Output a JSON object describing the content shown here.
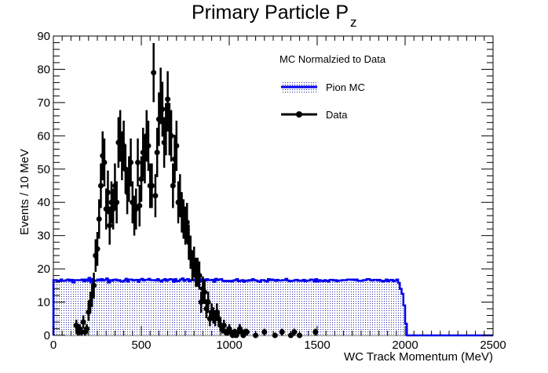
{
  "chart_data": {
    "type": "histogram+errorbars",
    "title": "Primary Particle P",
    "title_subscript": "z",
    "xlabel": "WC Track Momentum (MeV)",
    "ylabel": "Events / 10 MeV",
    "xlim": [
      0,
      2500
    ],
    "ylim": [
      0,
      90
    ],
    "x_ticks": [
      0,
      500,
      1000,
      1500,
      2000,
      2500
    ],
    "y_ticks": [
      0,
      10,
      20,
      30,
      40,
      50,
      60,
      70,
      80,
      90
    ],
    "grid": false,
    "legend": {
      "title": "MC Normalzied to Data",
      "placement": "top-right",
      "entries": [
        "Pion MC",
        "Data"
      ]
    },
    "colors": {
      "mc": "#0000ee",
      "data": "#000000",
      "fill": "#2222aa"
    },
    "series": [
      {
        "name": "Pion MC",
        "kind": "step-filled",
        "bin_width": 10,
        "x_start": 0,
        "values": [
          16.6,
          16.6,
          16.4,
          16.3,
          16.8,
          16.4,
          16.4,
          16.6,
          16.8,
          16.4,
          16.7,
          15.9,
          16.6,
          16.6,
          16.6,
          16.6,
          16.8,
          16.3,
          16.8,
          16.4,
          17.3,
          15.9,
          16.9,
          16.4,
          16.5,
          16.8,
          16.5,
          16.9,
          16.5,
          16.7,
          17.1,
          15.9,
          16.6,
          16.4,
          16.7,
          16.8,
          16.5,
          16.6,
          16.3,
          16.2,
          16.5,
          17.0,
          16.2,
          16.8,
          16.8,
          16.5,
          16.6,
          16.7,
          16.1,
          16.7,
          17.0,
          16.5,
          16.7,
          16.7,
          17.0,
          16.6,
          16.6,
          16.6,
          16.5,
          16.9,
          16.5,
          16.2,
          16.6,
          16.9,
          16.4,
          16.7,
          16.9,
          16.8,
          16.1,
          16.9,
          16.3,
          16.4,
          16.8,
          17.1,
          16.4,
          16.7,
          16.9,
          16.3,
          16.6,
          16.8,
          16.5,
          16.2,
          16.7,
          16.9,
          16.3,
          16.8,
          16.5,
          16.9,
          16.6,
          16.6,
          16.7,
          16.1,
          17.0,
          16.6,
          16.8,
          16.9,
          16.4,
          16.3,
          16.4,
          16.3,
          16.4,
          16.2,
          16.5,
          16.6,
          16.9,
          16.3,
          16.4,
          16.6,
          16.1,
          16.5,
          16.4,
          16.6,
          16.5,
          16.9,
          16.6,
          16.5,
          16.3,
          16.1,
          16.6,
          16.6,
          16.4,
          16.2,
          16.9,
          16.6,
          16.8,
          16.6,
          16.4,
          16.7,
          16.5,
          16.5,
          16.6,
          16.6,
          17.0,
          16.5,
          16.3,
          16.4,
          16.4,
          16.6,
          16.7,
          16.4,
          16.5,
          16.4,
          16.7,
          16.3,
          16.5,
          16.5,
          16.8,
          16.7,
          16.2,
          16.9,
          16.2,
          16.6,
          16.4,
          16.3,
          16.6,
          16.4,
          16.2,
          16.7,
          16.7,
          16.5,
          16.6,
          16.3,
          16.5,
          16.5,
          16.6,
          16.6,
          16.6,
          16.8,
          16.8,
          16.7,
          16.8,
          16.6,
          16.8,
          16.4,
          16.4,
          16.4,
          16.6,
          16.6,
          16.9,
          16.9,
          16.6,
          16.5,
          16.7,
          16.7,
          16.5,
          16.7,
          16.4,
          16.2,
          16.4,
          16.8,
          16.3,
          16.6,
          16.7,
          16.3,
          16.5,
          16.8,
          15.8,
          14.0,
          12.5,
          9.0,
          3.5,
          0.0
        ],
        "trailing_zero_to": 2500
      },
      {
        "name": "Data",
        "kind": "points-with-errors",
        "x": [
          130,
          140,
          150,
          160,
          170,
          180,
          190,
          200,
          210,
          220,
          230,
          240,
          250,
          260,
          270,
          280,
          290,
          300,
          310,
          320,
          330,
          340,
          350,
          360,
          370,
          380,
          390,
          400,
          410,
          420,
          430,
          440,
          450,
          460,
          470,
          480,
          490,
          500,
          510,
          520,
          530,
          540,
          550,
          560,
          570,
          580,
          590,
          600,
          610,
          620,
          630,
          640,
          650,
          660,
          670,
          680,
          690,
          700,
          710,
          720,
          730,
          740,
          750,
          760,
          770,
          780,
          790,
          800,
          810,
          820,
          830,
          840,
          850,
          860,
          870,
          880,
          890,
          900,
          910,
          920,
          930,
          940,
          950,
          960,
          970,
          980,
          990,
          1000,
          1010,
          1020,
          1030,
          1040,
          1050,
          1060,
          1070,
          1080,
          1090,
          1100,
          1150,
          1200,
          1260,
          1300,
          1350,
          1370,
          1400,
          1490
        ],
        "y": [
          3,
          1,
          2,
          1,
          4,
          1,
          2,
          7,
          10,
          12,
          15,
          24,
          26,
          35,
          45,
          54,
          52,
          38,
          43,
          33,
          40,
          38,
          45,
          40,
          58,
          60,
          54,
          57,
          50,
          43,
          47,
          52,
          40,
          36,
          38,
          52,
          39,
          47,
          55,
          53,
          60,
          57,
          45,
          45,
          79,
          42,
          55,
          65,
          72,
          68,
          58,
          62,
          71,
          62,
          60,
          45,
          53,
          57,
          40,
          42,
          37,
          35,
          33,
          34,
          28,
          25,
          21,
          22,
          19,
          19,
          18,
          10,
          14,
          13,
          8,
          10,
          5,
          7,
          6,
          5,
          7,
          5,
          3,
          2,
          3,
          1,
          1,
          2,
          1,
          0,
          1,
          0,
          1,
          2,
          1,
          0,
          1,
          1,
          0,
          1,
          0,
          1,
          0,
          1,
          0,
          1
        ],
        "yerr": "sqrt(y)"
      }
    ]
  }
}
